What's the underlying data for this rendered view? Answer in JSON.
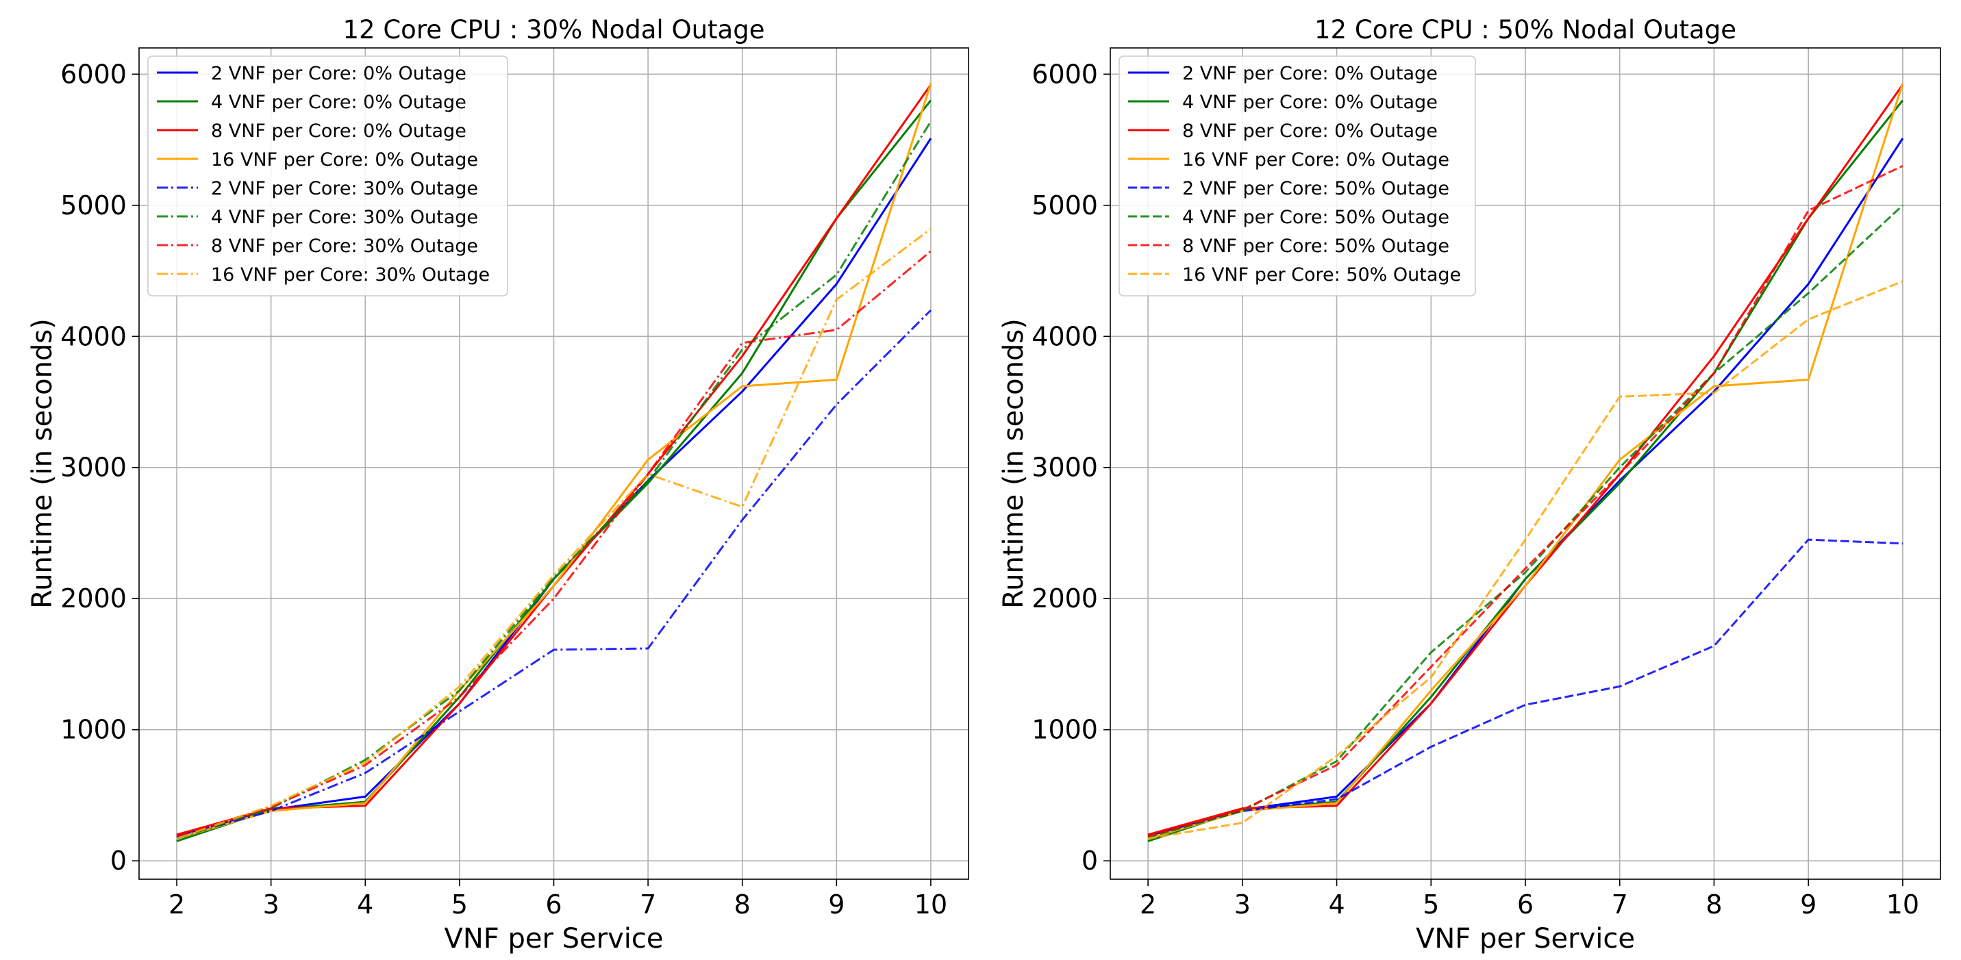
{
  "chart_data": [
    {
      "type": "line",
      "title": "12 Core CPU : 30% Nodal Outage",
      "xlabel": "VNF per Service",
      "ylabel": "Runtime (in seconds)",
      "x": [
        2,
        3,
        4,
        5,
        6,
        7,
        8,
        9,
        10
      ],
      "xlim": [
        1.6,
        10.4
      ],
      "ylim": [
        -140,
        6200
      ],
      "xticks": [
        "2",
        "3",
        "4",
        "5",
        "6",
        "7",
        "8",
        "9",
        "10"
      ],
      "yticks": [
        "0",
        "1000",
        "2000",
        "3000",
        "4000",
        "5000",
        "6000"
      ],
      "ytick_values": [
        0,
        1000,
        2000,
        3000,
        4000,
        5000,
        6000
      ],
      "grid": true,
      "legend_position": "upper-left",
      "series": [
        {
          "name": "2 VNF per Core: 0% Outage",
          "color": "#0000ff",
          "style": "solid",
          "values": [
            190,
            390,
            490,
            1200,
            2150,
            2900,
            3580,
            4400,
            5510
          ]
        },
        {
          "name": "4 VNF per Core: 0% Outage",
          "color": "#008000",
          "style": "solid",
          "values": [
            150,
            390,
            450,
            1250,
            2150,
            2880,
            3720,
            4900,
            5800
          ]
        },
        {
          "name": "8 VNF per Core: 0% Outage",
          "color": "#ff0000",
          "style": "solid",
          "values": [
            200,
            400,
            420,
            1200,
            2100,
            2950,
            3850,
            4900,
            5920
          ]
        },
        {
          "name": "16 VNF per Core: 0% Outage",
          "color": "#ffa500",
          "style": "solid",
          "values": [
            170,
            380,
            440,
            1300,
            2100,
            3060,
            3620,
            3670,
            5930
          ]
        },
        {
          "name": "2 VNF per Core: 30% Outage",
          "color": "#0000ff",
          "style": "dashdot",
          "values": [
            180,
            380,
            670,
            1140,
            1610,
            1620,
            2600,
            3480,
            4200
          ]
        },
        {
          "name": "4 VNF per Core: 30% Outage",
          "color": "#008000",
          "style": "dashdot",
          "values": [
            170,
            400,
            770,
            1300,
            2160,
            2900,
            3900,
            4470,
            5640
          ]
        },
        {
          "name": "8 VNF per Core: 30% Outage",
          "color": "#ff0000",
          "style": "dashdot",
          "values": [
            190,
            410,
            730,
            1250,
            2000,
            2950,
            3950,
            4050,
            4650
          ]
        },
        {
          "name": "16 VNF per Core: 30% Outage",
          "color": "#ffa500",
          "style": "dashdot",
          "values": [
            170,
            420,
            750,
            1330,
            2180,
            2950,
            2700,
            4280,
            4820
          ]
        }
      ]
    },
    {
      "type": "line",
      "title": "12 Core CPU : 50% Nodal Outage",
      "xlabel": "VNF per Service",
      "ylabel": "Runtime (in seconds)",
      "x": [
        2,
        3,
        4,
        5,
        6,
        7,
        8,
        9,
        10
      ],
      "xlim": [
        1.6,
        10.4
      ],
      "ylim": [
        -140,
        6200
      ],
      "xticks": [
        "2",
        "3",
        "4",
        "5",
        "6",
        "7",
        "8",
        "9",
        "10"
      ],
      "yticks": [
        "0",
        "1000",
        "2000",
        "3000",
        "4000",
        "5000",
        "6000"
      ],
      "ytick_values": [
        0,
        1000,
        2000,
        3000,
        4000,
        5000,
        6000
      ],
      "grid": true,
      "legend_position": "upper-left",
      "series": [
        {
          "name": "2 VNF per Core: 0% Outage",
          "color": "#0000ff",
          "style": "solid",
          "values": [
            190,
            390,
            490,
            1200,
            2150,
            2900,
            3580,
            4400,
            5510
          ]
        },
        {
          "name": "4 VNF per Core: 0% Outage",
          "color": "#008000",
          "style": "solid",
          "values": [
            150,
            390,
            450,
            1250,
            2150,
            2880,
            3720,
            4900,
            5800
          ]
        },
        {
          "name": "8 VNF per Core: 0% Outage",
          "color": "#ff0000",
          "style": "solid",
          "values": [
            200,
            400,
            420,
            1200,
            2100,
            2950,
            3850,
            4900,
            5920
          ]
        },
        {
          "name": "16 VNF per Core: 0% Outage",
          "color": "#ffa500",
          "style": "solid",
          "values": [
            170,
            380,
            440,
            1300,
            2100,
            3060,
            3620,
            3670,
            5930
          ]
        },
        {
          "name": "2 VNF per Core: 50% Outage",
          "color": "#0000ff",
          "style": "dashed",
          "values": [
            190,
            380,
            470,
            870,
            1190,
            1330,
            1640,
            2450,
            2420
          ]
        },
        {
          "name": "4 VNF per Core: 50% Outage",
          "color": "#008000",
          "style": "dashed",
          "values": [
            180,
            380,
            760,
            1590,
            2200,
            3000,
            3720,
            4330,
            5000
          ]
        },
        {
          "name": "8 VNF per Core: 50% Outage",
          "color": "#ff0000",
          "style": "dashed",
          "values": [
            190,
            390,
            730,
            1480,
            2230,
            2950,
            3720,
            4960,
            5300
          ]
        },
        {
          "name": "16 VNF per Core: 50% Outage",
          "color": "#ffa500",
          "style": "dashed",
          "values": [
            170,
            290,
            800,
            1400,
            2450,
            3540,
            3570,
            4130,
            4420
          ]
        }
      ]
    }
  ]
}
